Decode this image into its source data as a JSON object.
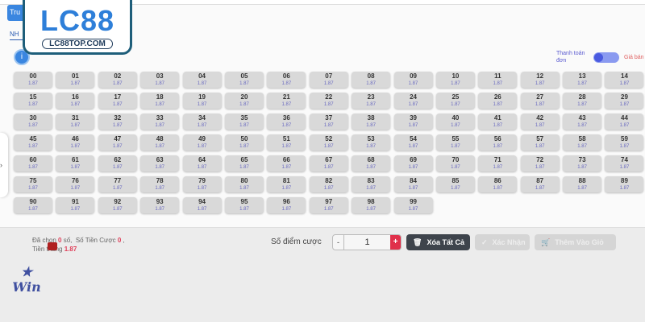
{
  "header": {
    "tab_label": "Tru",
    "subtab_label": "NH",
    "info_icon": "info-icon"
  },
  "logo": {
    "main": "LC88",
    "sub": "LC88TOP.COM"
  },
  "toggle": {
    "left_label": "Thanh toán đơn",
    "right_label": "Giá bán",
    "state": "left"
  },
  "numbers": [
    "00",
    "01",
    "02",
    "03",
    "04",
    "05",
    "06",
    "07",
    "08",
    "09",
    "10",
    "11",
    "12",
    "13",
    "14",
    "15",
    "16",
    "17",
    "18",
    "19",
    "20",
    "21",
    "22",
    "23",
    "24",
    "25",
    "26",
    "27",
    "28",
    "29",
    "30",
    "31",
    "32",
    "33",
    "34",
    "35",
    "36",
    "37",
    "38",
    "39",
    "40",
    "41",
    "42",
    "43",
    "44",
    "45",
    "46",
    "47",
    "48",
    "49",
    "50",
    "51",
    "52",
    "53",
    "54",
    "55",
    "56",
    "57",
    "58",
    "59",
    "60",
    "61",
    "62",
    "63",
    "64",
    "65",
    "66",
    "67",
    "68",
    "69",
    "70",
    "71",
    "72",
    "73",
    "74",
    "75",
    "76",
    "77",
    "78",
    "79",
    "80",
    "81",
    "82",
    "83",
    "84",
    "85",
    "86",
    "87",
    "88",
    "89",
    "90",
    "91",
    "92",
    "93",
    "94",
    "95",
    "96",
    "97",
    "98",
    "99"
  ],
  "odds": "1.87",
  "summary": {
    "selected_prefix": "Đã chọn",
    "selected_count": "0",
    "selected_suffix": "số,",
    "stake_prefix": "Số Tiền Cược",
    "stake_value": "0",
    "stake_suffix": ",",
    "win_prefix": "Tiền thắng",
    "win_value": "1.87"
  },
  "controls": {
    "stake_label": "Số điểm cược",
    "minus": "-",
    "value": "1",
    "plus": "+",
    "clear_label": "Xóa Tất Cả",
    "confirm_label": "Xác Nhận",
    "cart_label": "Thêm Vào Giỏ"
  },
  "game_logo": "Win Game",
  "colors": {
    "accent": "#3a86e0",
    "danger": "#e0304a",
    "odds": "#6a6ac0"
  }
}
